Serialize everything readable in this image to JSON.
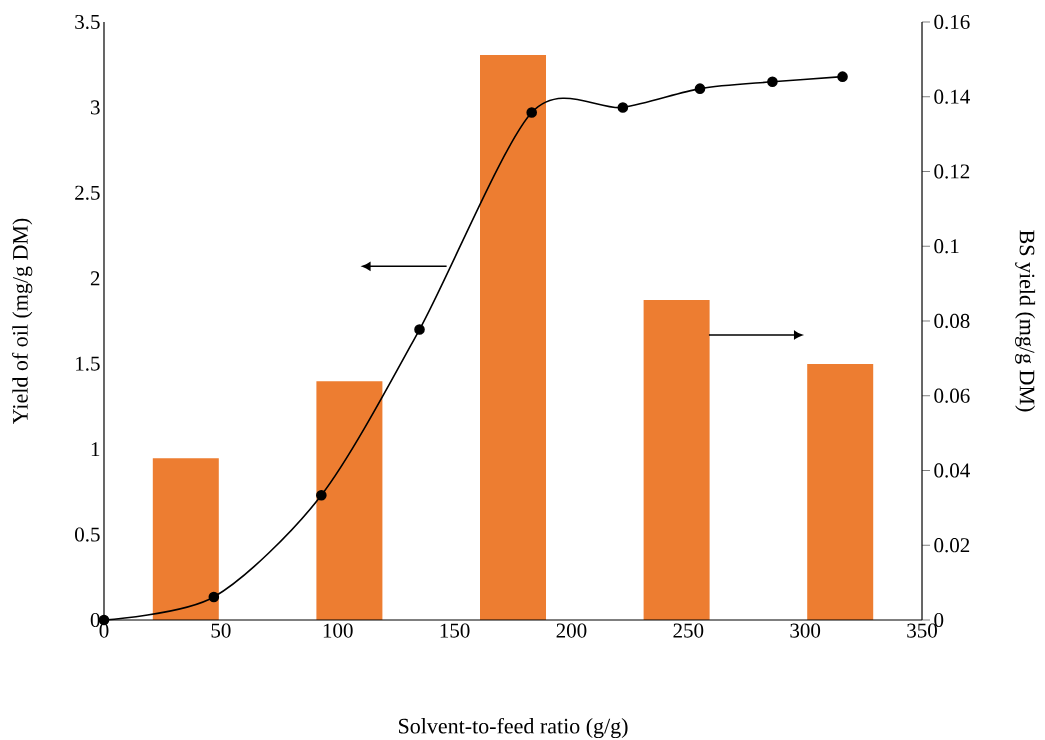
{
  "chart_data": {
    "type": "line",
    "xlabel": "Solvent-to-feed ratio (g/g)",
    "ylabel": "Yield of oil (mg/g DM)",
    "y2label": "BS yield (mg/g DM)",
    "xlim": [
      0,
      350
    ],
    "xticks": [
      0,
      50,
      100,
      150,
      200,
      250,
      300,
      350
    ],
    "ylim": [
      0,
      3.5
    ],
    "yticks": [
      0,
      0.5,
      1,
      1.5,
      2,
      2.5,
      3,
      3.5
    ],
    "y2lim": [
      0,
      0.16
    ],
    "y2ticks": [
      0,
      0.02,
      0.04,
      0.06,
      0.08,
      0.1,
      0.12,
      0.14,
      0.16
    ],
    "grid": false,
    "series": [
      {
        "type": "bar",
        "axis": "y2",
        "color": "#ed7d31",
        "x": [
          35,
          105,
          175,
          245,
          315
        ],
        "values": [
          0.0433,
          0.0639,
          0.1512,
          0.0856,
          0.0685
        ]
      },
      {
        "color": "#000000",
        "marker": "circle",
        "x": [
          0,
          47,
          93,
          135,
          183,
          222,
          255,
          286,
          316
        ],
        "values": [
          0,
          0.135,
          0.73,
          1.7,
          2.97,
          3.0,
          3.11,
          3.15,
          3.18
        ]
      }
    ]
  }
}
